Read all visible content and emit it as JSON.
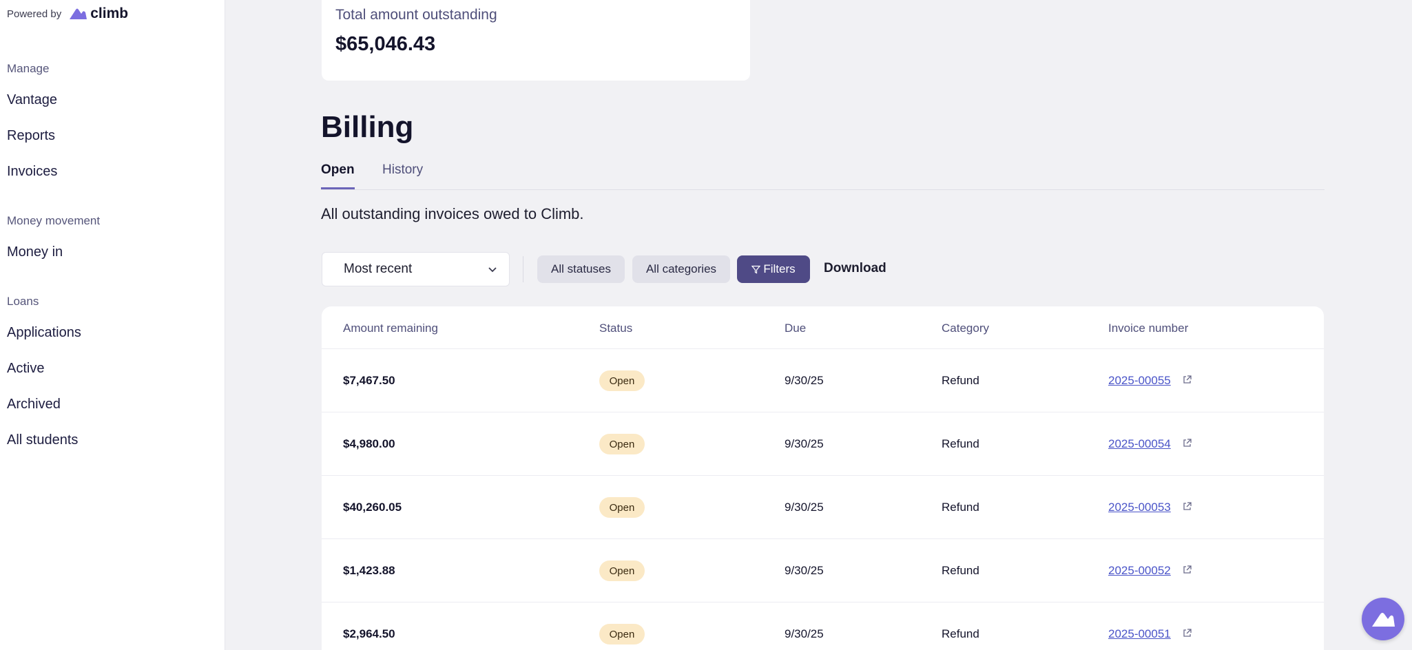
{
  "sidebar": {
    "powered_by": "Powered by",
    "brand": "climb",
    "sections": [
      {
        "heading": "Manage",
        "items": [
          "Vantage",
          "Reports",
          "Invoices"
        ]
      },
      {
        "heading": "Money movement",
        "items": [
          "Money in"
        ]
      },
      {
        "heading": "Loans",
        "items": [
          "Applications",
          "Active",
          "Archived",
          "All students"
        ]
      }
    ]
  },
  "summary": {
    "label": "Total amount outstanding",
    "value": "$65,046.43"
  },
  "page": {
    "title": "Billing",
    "tabs": [
      "Open",
      "History"
    ],
    "active_tab": "Open",
    "subtitle": "All outstanding invoices owed to Climb."
  },
  "toolbar": {
    "sort_value": "Most recent",
    "statuses_label": "All statuses",
    "categories_label": "All categories",
    "filters_label": "Filters",
    "download_label": "Download"
  },
  "table": {
    "headers": [
      "Amount remaining",
      "Status",
      "Due",
      "Category",
      "Invoice number"
    ],
    "rows": [
      {
        "amount": "$7,467.50",
        "status": "Open",
        "due": "9/30/25",
        "category": "Refund",
        "invoice": "2025-00055"
      },
      {
        "amount": "$4,980.00",
        "status": "Open",
        "due": "9/30/25",
        "category": "Refund",
        "invoice": "2025-00054"
      },
      {
        "amount": "$40,260.05",
        "status": "Open",
        "due": "9/30/25",
        "category": "Refund",
        "invoice": "2025-00053"
      },
      {
        "amount": "$1,423.88",
        "status": "Open",
        "due": "9/30/25",
        "category": "Refund",
        "invoice": "2025-00052"
      },
      {
        "amount": "$2,964.50",
        "status": "Open",
        "due": "9/30/25",
        "category": "Refund",
        "invoice": "2025-00051"
      }
    ]
  },
  "colors": {
    "accent": "#4f4a86",
    "brand": "#7c6ee0",
    "badge_open": "#fbe9c6",
    "link": "#4a54c8"
  },
  "icons": {
    "brand": "climb-logo-icon",
    "sort": "chevron-down-icon",
    "filters": "filter-icon",
    "invoice_link": "external-link-icon",
    "fab": "climb-logo-icon"
  }
}
